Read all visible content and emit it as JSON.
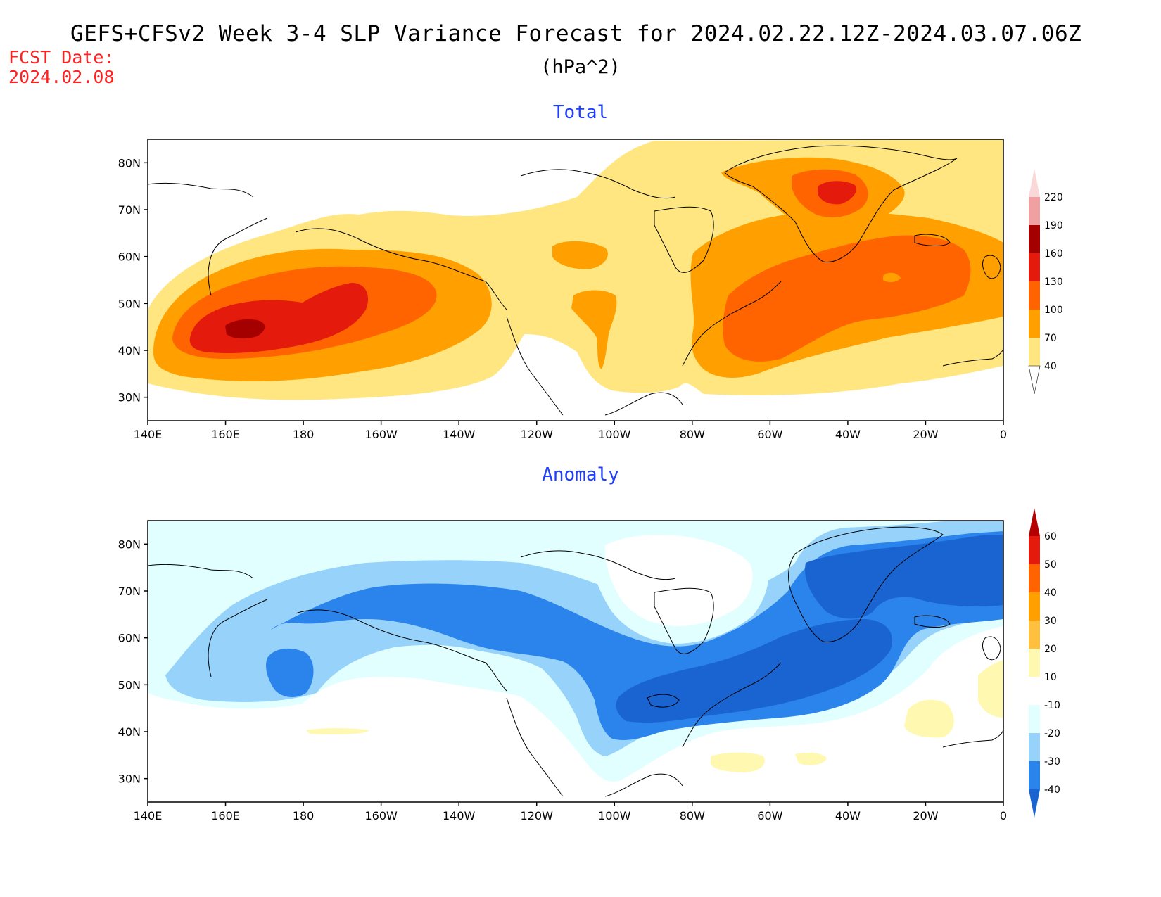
{
  "title": "GEFS+CFSv2 Week 3-4 SLP Variance Forecast for 2024.02.22.12Z-2024.03.07.06Z",
  "units": "(hPa^2)",
  "fcst_date_label": "FCST Date:",
  "fcst_date": "2024.02.08",
  "lat_labels": [
    "80N",
    "70N",
    "60N",
    "50N",
    "40N",
    "30N"
  ],
  "lon_labels": [
    "140E",
    "160E",
    "180",
    "160W",
    "140W",
    "120W",
    "100W",
    "80W",
    "60W",
    "40W",
    "20W",
    "0"
  ],
  "panels": [
    {
      "title": "Total",
      "colorbar": {
        "levels": [
          "40",
          "70",
          "100",
          "130",
          "160",
          "190",
          "220"
        ],
        "colors": [
          "#ffe680",
          "#ffa000",
          "#ff6400",
          "#e41a0c",
          "#a50000",
          "#f0a0a0",
          "#fbd8d8"
        ]
      }
    },
    {
      "title": "Anomaly",
      "colorbar": {
        "levels": [
          "-40",
          "-30",
          "-20",
          "-10",
          "10",
          "20",
          "30",
          "40",
          "50",
          "60"
        ],
        "colors": [
          "#1a64d2",
          "#2b84ec",
          "#96d2fa",
          "#e1ffff",
          "#ffffff",
          "#fff8b0",
          "#ffc040",
          "#ffa000",
          "#ff6400",
          "#e41a0c",
          "#b40000"
        ]
      }
    }
  ]
}
